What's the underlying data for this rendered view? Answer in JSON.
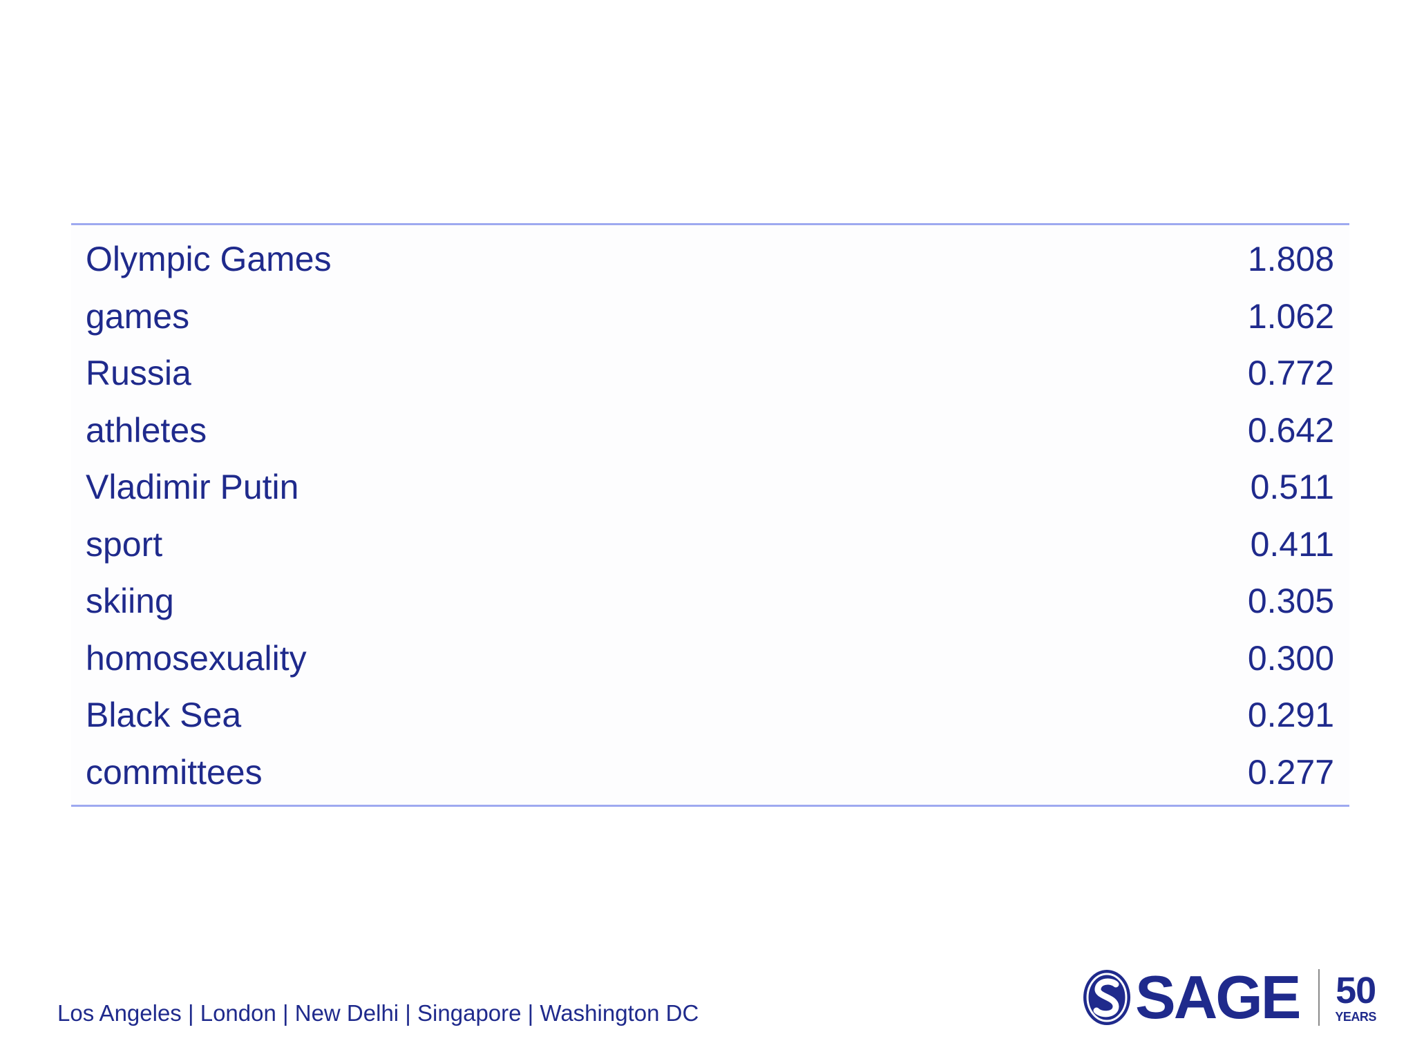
{
  "table": {
    "rows": [
      {
        "term": "Olympic Games",
        "score": "1.808"
      },
      {
        "term": "games",
        "score": "1.062"
      },
      {
        "term": "Russia",
        "score": "0.772"
      },
      {
        "term": "athletes",
        "score": "0.642"
      },
      {
        "term": "Vladimir Putin",
        "score": "0.511"
      },
      {
        "term": "sport",
        "score": "0.411"
      },
      {
        "term": "skiing",
        "score": "0.305"
      },
      {
        "term": "homosexuality",
        "score": "0.300"
      },
      {
        "term": "Black Sea",
        "score": "0.291"
      },
      {
        "term": "committees",
        "score": "0.277"
      }
    ]
  },
  "footer": {
    "cities": "Los Angeles | London | New Delhi | Singapore | Washington DC"
  },
  "logo": {
    "wordmark": "SAGE",
    "years_number": "50",
    "years_text": "YEARS",
    "icon": "sage-s-emblem-icon"
  },
  "colors": {
    "text": "#1f2a8c",
    "rule": "#9ea9f0",
    "background": "#ffffff"
  }
}
